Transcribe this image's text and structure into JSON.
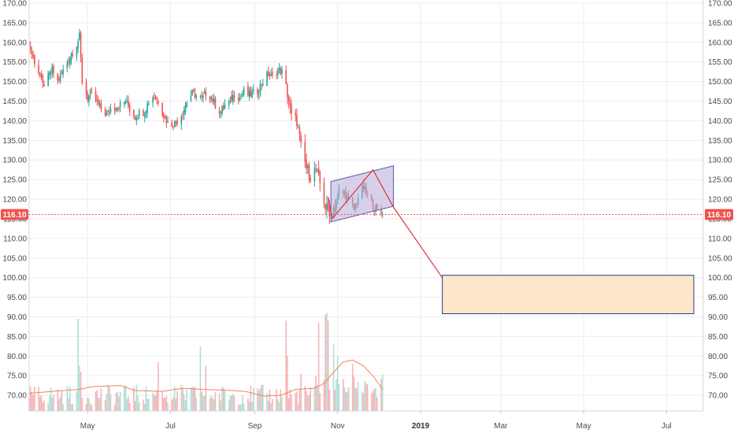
{
  "chart_data": {
    "type": "candlestick",
    "colors": {
      "up": "#26a69a",
      "down": "#ef5350",
      "volume_up": "#b2dfd6",
      "volume_down": "#f5b5b7",
      "volume_ma": "#f0845a",
      "last_price": "#ef5350",
      "grid": "#e9edf2",
      "axis_text": "#4a4a4a",
      "channel_fill": "#b7a9d9",
      "channel_stroke": "#5f5aa8",
      "projection_line": "#e0313c",
      "target_box_fill": "#fde8cc",
      "target_box_stroke": "#2b3a8c"
    },
    "x_axis": {
      "labels": [
        "May",
        "Jul",
        "Sep",
        "Nov",
        "2019",
        "Mar",
        "May",
        "Jul"
      ],
      "label_dates": [
        "2018-05-01",
        "2018-07-01",
        "2018-09-01",
        "2018-11-01",
        "2019-01-01",
        "2019-03-01",
        "2019-05-01",
        "2019-07-01"
      ],
      "range": [
        "2018-03-19",
        "2019-07-28"
      ]
    },
    "y_axis": {
      "range": [
        66,
        170
      ],
      "ticks": [
        "70.00",
        "75.00",
        "80.00",
        "85.00",
        "90.00",
        "95.00",
        "100.00",
        "105.00",
        "110.00",
        "115.00",
        "120.00",
        "125.00",
        "130.00",
        "135.00",
        "140.00",
        "145.00",
        "150.00",
        "155.00",
        "160.00",
        "165.00",
        "170.00"
      ],
      "side": "both"
    },
    "last_price": {
      "value": 116.1,
      "label": "116.10"
    },
    "closes": [
      [
        "2018-03-19",
        159.5
      ],
      [
        "2018-03-22",
        156.0
      ],
      [
        "2018-03-26",
        152.5
      ],
      [
        "2018-03-29",
        149.0
      ],
      [
        "2018-04-02",
        151.0
      ],
      [
        "2018-04-05",
        153.0
      ],
      [
        "2018-04-09",
        150.0
      ],
      [
        "2018-04-12",
        152.0
      ],
      [
        "2018-04-16",
        155.0
      ],
      [
        "2018-04-19",
        157.0
      ],
      [
        "2018-04-23",
        159.5
      ],
      [
        "2018-04-25",
        161.5
      ],
      [
        "2018-04-27",
        150.0
      ],
      [
        "2018-05-01",
        146.0
      ],
      [
        "2018-05-04",
        147.0
      ],
      [
        "2018-05-08",
        144.5
      ],
      [
        "2018-05-11",
        143.0
      ],
      [
        "2018-05-15",
        141.5
      ],
      [
        "2018-05-18",
        143.0
      ],
      [
        "2018-05-22",
        143.5
      ],
      [
        "2018-05-25",
        144.0
      ],
      [
        "2018-05-29",
        145.0
      ],
      [
        "2018-06-01",
        143.0
      ],
      [
        "2018-06-05",
        141.0
      ],
      [
        "2018-06-08",
        142.0
      ],
      [
        "2018-06-12",
        142.5
      ],
      [
        "2018-06-15",
        145.0
      ],
      [
        "2018-06-19",
        146.5
      ],
      [
        "2018-06-22",
        145.0
      ],
      [
        "2018-06-26",
        141.5
      ],
      [
        "2018-06-29",
        139.5
      ],
      [
        "2018-07-03",
        139.0
      ],
      [
        "2018-07-06",
        140.0
      ],
      [
        "2018-07-10",
        142.0
      ],
      [
        "2018-07-13",
        145.0
      ],
      [
        "2018-07-17",
        147.0
      ],
      [
        "2018-07-20",
        146.5
      ],
      [
        "2018-07-24",
        145.5
      ],
      [
        "2018-07-27",
        147.0
      ],
      [
        "2018-07-31",
        146.0
      ],
      [
        "2018-08-03",
        144.0
      ],
      [
        "2018-08-07",
        142.0
      ],
      [
        "2018-08-10",
        144.0
      ],
      [
        "2018-08-14",
        145.0
      ],
      [
        "2018-08-17",
        147.0
      ],
      [
        "2018-08-21",
        146.0
      ],
      [
        "2018-08-24",
        147.5
      ],
      [
        "2018-08-28",
        146.5
      ],
      [
        "2018-08-31",
        147.0
      ],
      [
        "2018-09-04",
        148.0
      ],
      [
        "2018-09-07",
        150.0
      ],
      [
        "2018-09-11",
        152.0
      ],
      [
        "2018-09-14",
        151.0
      ],
      [
        "2018-09-18",
        153.0
      ],
      [
        "2018-09-21",
        152.5
      ],
      [
        "2018-09-25",
        147.0
      ],
      [
        "2018-09-28",
        141.0
      ],
      [
        "2018-10-02",
        140.0
      ],
      [
        "2018-10-05",
        133.0
      ],
      [
        "2018-10-09",
        128.0
      ],
      [
        "2018-10-12",
        126.0
      ],
      [
        "2018-10-16",
        127.5
      ],
      [
        "2018-10-19",
        124.0
      ],
      [
        "2018-10-23",
        118.0
      ],
      [
        "2018-10-26",
        117.0
      ],
      [
        "2018-10-30",
        118.0
      ],
      [
        "2018-11-02",
        122.0
      ],
      [
        "2018-11-06",
        121.5
      ],
      [
        "2018-11-09",
        120.0
      ],
      [
        "2018-11-13",
        117.5
      ],
      [
        "2018-11-16",
        120.5
      ],
      [
        "2018-11-20",
        123.0
      ],
      [
        "2018-11-23",
        121.0
      ],
      [
        "2018-11-27",
        118.5
      ],
      [
        "2018-11-30",
        117.0
      ],
      [
        "2018-12-04",
        116.1
      ]
    ],
    "volume_ma": [
      [
        "2018-03-19",
        70.5
      ],
      [
        "2018-04-05",
        71.0
      ],
      [
        "2018-04-25",
        71.5
      ],
      [
        "2018-05-05",
        72.2
      ],
      [
        "2018-05-25",
        72.5
      ],
      [
        "2018-06-05",
        71.2
      ],
      [
        "2018-06-25",
        71.0
      ],
      [
        "2018-07-10",
        71.8
      ],
      [
        "2018-07-25",
        71.5
      ],
      [
        "2018-08-10",
        71.3
      ],
      [
        "2018-08-25",
        71.0
      ],
      [
        "2018-09-08",
        69.8
      ],
      [
        "2018-09-20",
        70.0
      ],
      [
        "2018-10-01",
        71.5
      ],
      [
        "2018-10-15",
        71.8
      ],
      [
        "2018-10-22",
        73.0
      ],
      [
        "2018-10-28",
        75.5
      ],
      [
        "2018-11-05",
        78.5
      ],
      [
        "2018-11-12",
        79.0
      ],
      [
        "2018-11-20",
        77.5
      ],
      [
        "2018-11-28",
        74.5
      ],
      [
        "2018-12-04",
        71.5
      ]
    ],
    "channel": {
      "points": [
        [
          "2018-10-27",
          124.5
        ],
        [
          "2018-12-12",
          128.5
        ],
        [
          "2018-12-12",
          118.2
        ],
        [
          "2018-10-27",
          114.2
        ]
      ]
    },
    "zigzag": {
      "points": [
        [
          "2018-10-25",
          120.5
        ],
        [
          "2018-10-28",
          115.0
        ],
        [
          "2018-11-27",
          127.5
        ],
        [
          "2018-12-12",
          118.0
        ],
        [
          "2019-01-17",
          100.0
        ]
      ]
    },
    "target_zone": {
      "x_range": [
        "2019-01-17",
        "2019-07-21"
      ],
      "y_range": [
        90.8,
        100.6
      ]
    }
  }
}
